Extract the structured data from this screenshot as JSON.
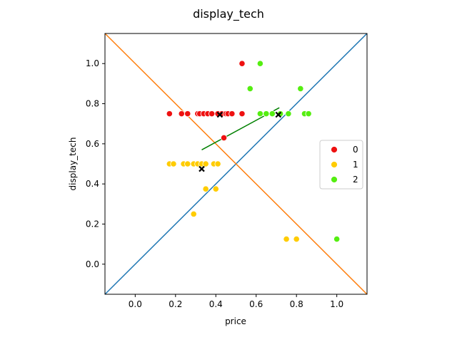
{
  "chart_data": {
    "type": "scatter",
    "title": "display_tech",
    "xlabel": "price",
    "ylabel": "display_tech",
    "xlim": [
      -0.15,
      1.15
    ],
    "ylim": [
      -0.15,
      1.15
    ],
    "xticks": [
      "0.0",
      "0.2",
      "0.4",
      "0.6",
      "0.8",
      "1.0"
    ],
    "yticks": [
      "0.0",
      "0.2",
      "0.4",
      "0.6",
      "0.8",
      "1.0"
    ],
    "grid": false,
    "legend_position": "right",
    "series": [
      {
        "name": "0",
        "color": "#ee1111",
        "points": [
          [
            0.17,
            0.75
          ],
          [
            0.23,
            0.75
          ],
          [
            0.26,
            0.75
          ],
          [
            0.31,
            0.75
          ],
          [
            0.32,
            0.75
          ],
          [
            0.34,
            0.75
          ],
          [
            0.36,
            0.75
          ],
          [
            0.38,
            0.75
          ],
          [
            0.41,
            0.75
          ],
          [
            0.43,
            0.75
          ],
          [
            0.45,
            0.75
          ],
          [
            0.46,
            0.75
          ],
          [
            0.48,
            0.75
          ],
          [
            0.53,
            0.75
          ],
          [
            0.44,
            0.63
          ],
          [
            0.53,
            1.0
          ]
        ]
      },
      {
        "name": "1",
        "color": "#ffcc00",
        "points": [
          [
            0.17,
            0.5
          ],
          [
            0.19,
            0.5
          ],
          [
            0.24,
            0.5
          ],
          [
            0.26,
            0.5
          ],
          [
            0.29,
            0.5
          ],
          [
            0.31,
            0.5
          ],
          [
            0.33,
            0.5
          ],
          [
            0.35,
            0.5
          ],
          [
            0.39,
            0.5
          ],
          [
            0.41,
            0.5
          ],
          [
            0.35,
            0.375
          ],
          [
            0.4,
            0.375
          ],
          [
            0.29,
            0.25
          ],
          [
            0.75,
            0.125
          ],
          [
            0.8,
            0.125
          ]
        ]
      },
      {
        "name": "2",
        "color": "#55ee11",
        "points": [
          [
            0.62,
            1.0
          ],
          [
            0.57,
            0.875
          ],
          [
            0.82,
            0.875
          ],
          [
            0.62,
            0.75
          ],
          [
            0.65,
            0.75
          ],
          [
            0.68,
            0.75
          ],
          [
            0.72,
            0.75
          ],
          [
            0.76,
            0.75
          ],
          [
            0.84,
            0.75
          ],
          [
            0.86,
            0.75
          ],
          [
            1.0,
            0.125
          ]
        ]
      }
    ],
    "centroids": {
      "color": "#000000",
      "marker": "x",
      "points": [
        [
          0.42,
          0.745
        ],
        [
          0.71,
          0.745
        ],
        [
          0.33,
          0.475
        ]
      ]
    },
    "lines": [
      {
        "color": "#1f77b4",
        "points": [
          [
            -0.15,
            -0.15
          ],
          [
            1.15,
            1.15
          ]
        ]
      },
      {
        "color": "#ff7f0e",
        "points": [
          [
            -0.15,
            1.15
          ],
          [
            1.15,
            -0.15
          ]
        ]
      },
      {
        "color": "#008000",
        "points": [
          [
            0.33,
            0.57
          ],
          [
            0.715,
            0.78
          ]
        ]
      }
    ]
  }
}
